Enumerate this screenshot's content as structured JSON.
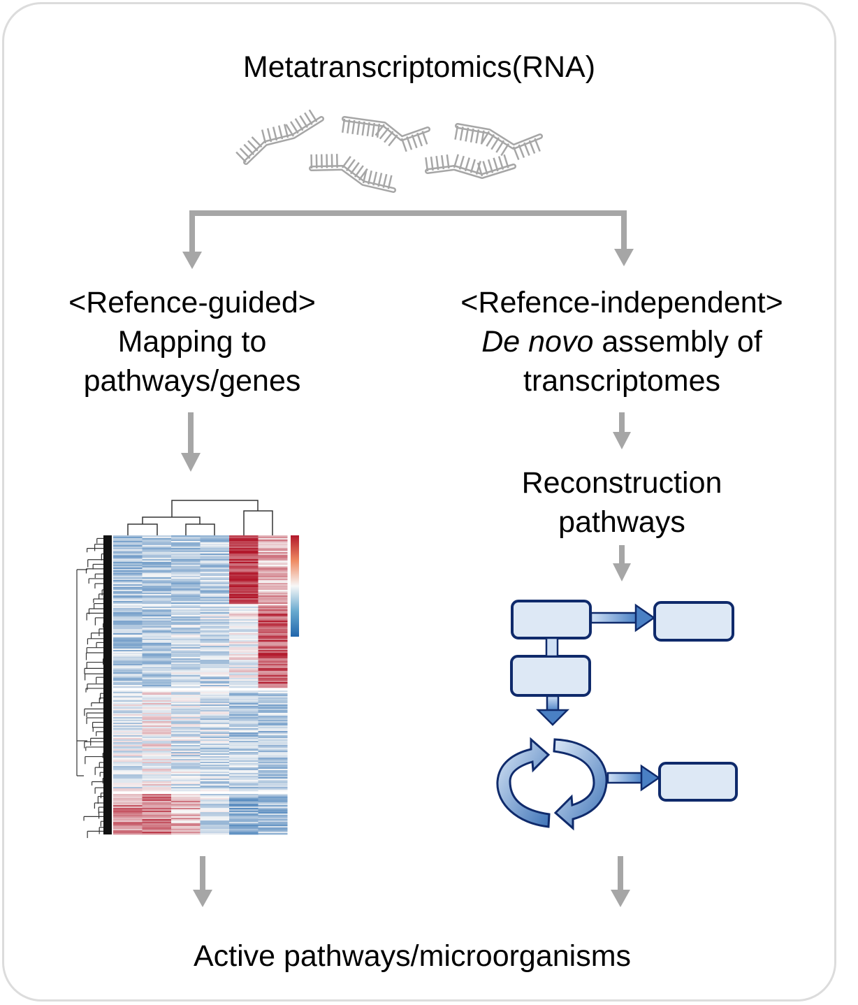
{
  "title": "Metatranscriptomics(RNA)",
  "left_branch": {
    "heading": "<Refence-guided>",
    "line1": "Mapping to",
    "line2": "pathways/genes"
  },
  "right_branch": {
    "heading": "<Refence-independent>",
    "line1_italic": "De novo",
    "line1_rest": " assembly of",
    "line2": "transcriptomes"
  },
  "reconstruction": {
    "line1": "Reconstruction",
    "line2": "pathways"
  },
  "result": "Active pathways/microorganisms",
  "icons": [
    "rna-strand-icon",
    "heatmap-icon",
    "pathway-diagram-icon",
    "cycle-arrows-icon"
  ],
  "colors": {
    "arrow": "#a6a6a6",
    "rna": "#a6a6a6",
    "box_fill": "#dde8f5",
    "box_stroke": "#0f2a6b",
    "flow_arrow": "#5b8fcf",
    "heat_red": "#b2182b",
    "heat_blue": "#2166ac"
  }
}
